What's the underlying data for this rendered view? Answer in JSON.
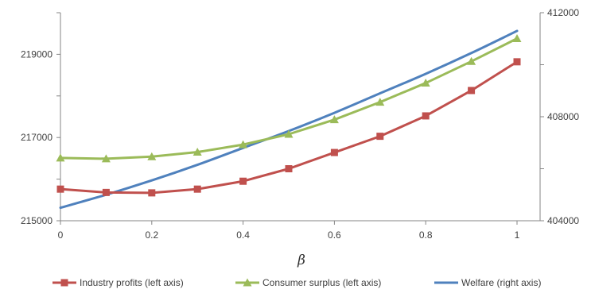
{
  "chart_data": {
    "type": "line",
    "title": "",
    "xlabel": "β",
    "x": [
      0,
      0.1,
      0.2,
      0.3,
      0.4,
      0.5,
      0.6,
      0.7,
      0.8,
      0.9,
      1
    ],
    "xlim": [
      0,
      1
    ],
    "x_ticks": [
      "0",
      "0.2",
      "0.4",
      "0.6",
      "0.8",
      "1"
    ],
    "y_left": {
      "lim": [
        215000,
        220000
      ],
      "ticks": [
        "215000",
        "217000",
        "219000"
      ]
    },
    "y_right": {
      "lim": [
        404000,
        412000
      ],
      "ticks": [
        "404000",
        "408000",
        "412000"
      ]
    },
    "grid": false,
    "legend": "bottom",
    "series": [
      {
        "name": "Industry profits (left axis)",
        "axis": "left",
        "marker": "square",
        "color": "#c0504d",
        "values": [
          215760,
          215680,
          215670,
          215760,
          215950,
          216250,
          216640,
          217030,
          217520,
          218130,
          218820
        ]
      },
      {
        "name": "Consumer surplus (left axis)",
        "axis": "left",
        "marker": "triangle",
        "color": "#9bbb59",
        "values": [
          216510,
          216490,
          216540,
          216650,
          216830,
          217080,
          217430,
          217850,
          218310,
          218830,
          219380
        ]
      },
      {
        "name": "Welfare (right axis)",
        "axis": "right",
        "marker": "none",
        "color": "#4f81bd",
        "values": [
          404500,
          405000,
          405550,
          406150,
          406800,
          407450,
          408150,
          408900,
          409650,
          410450,
          411300
        ]
      }
    ]
  }
}
